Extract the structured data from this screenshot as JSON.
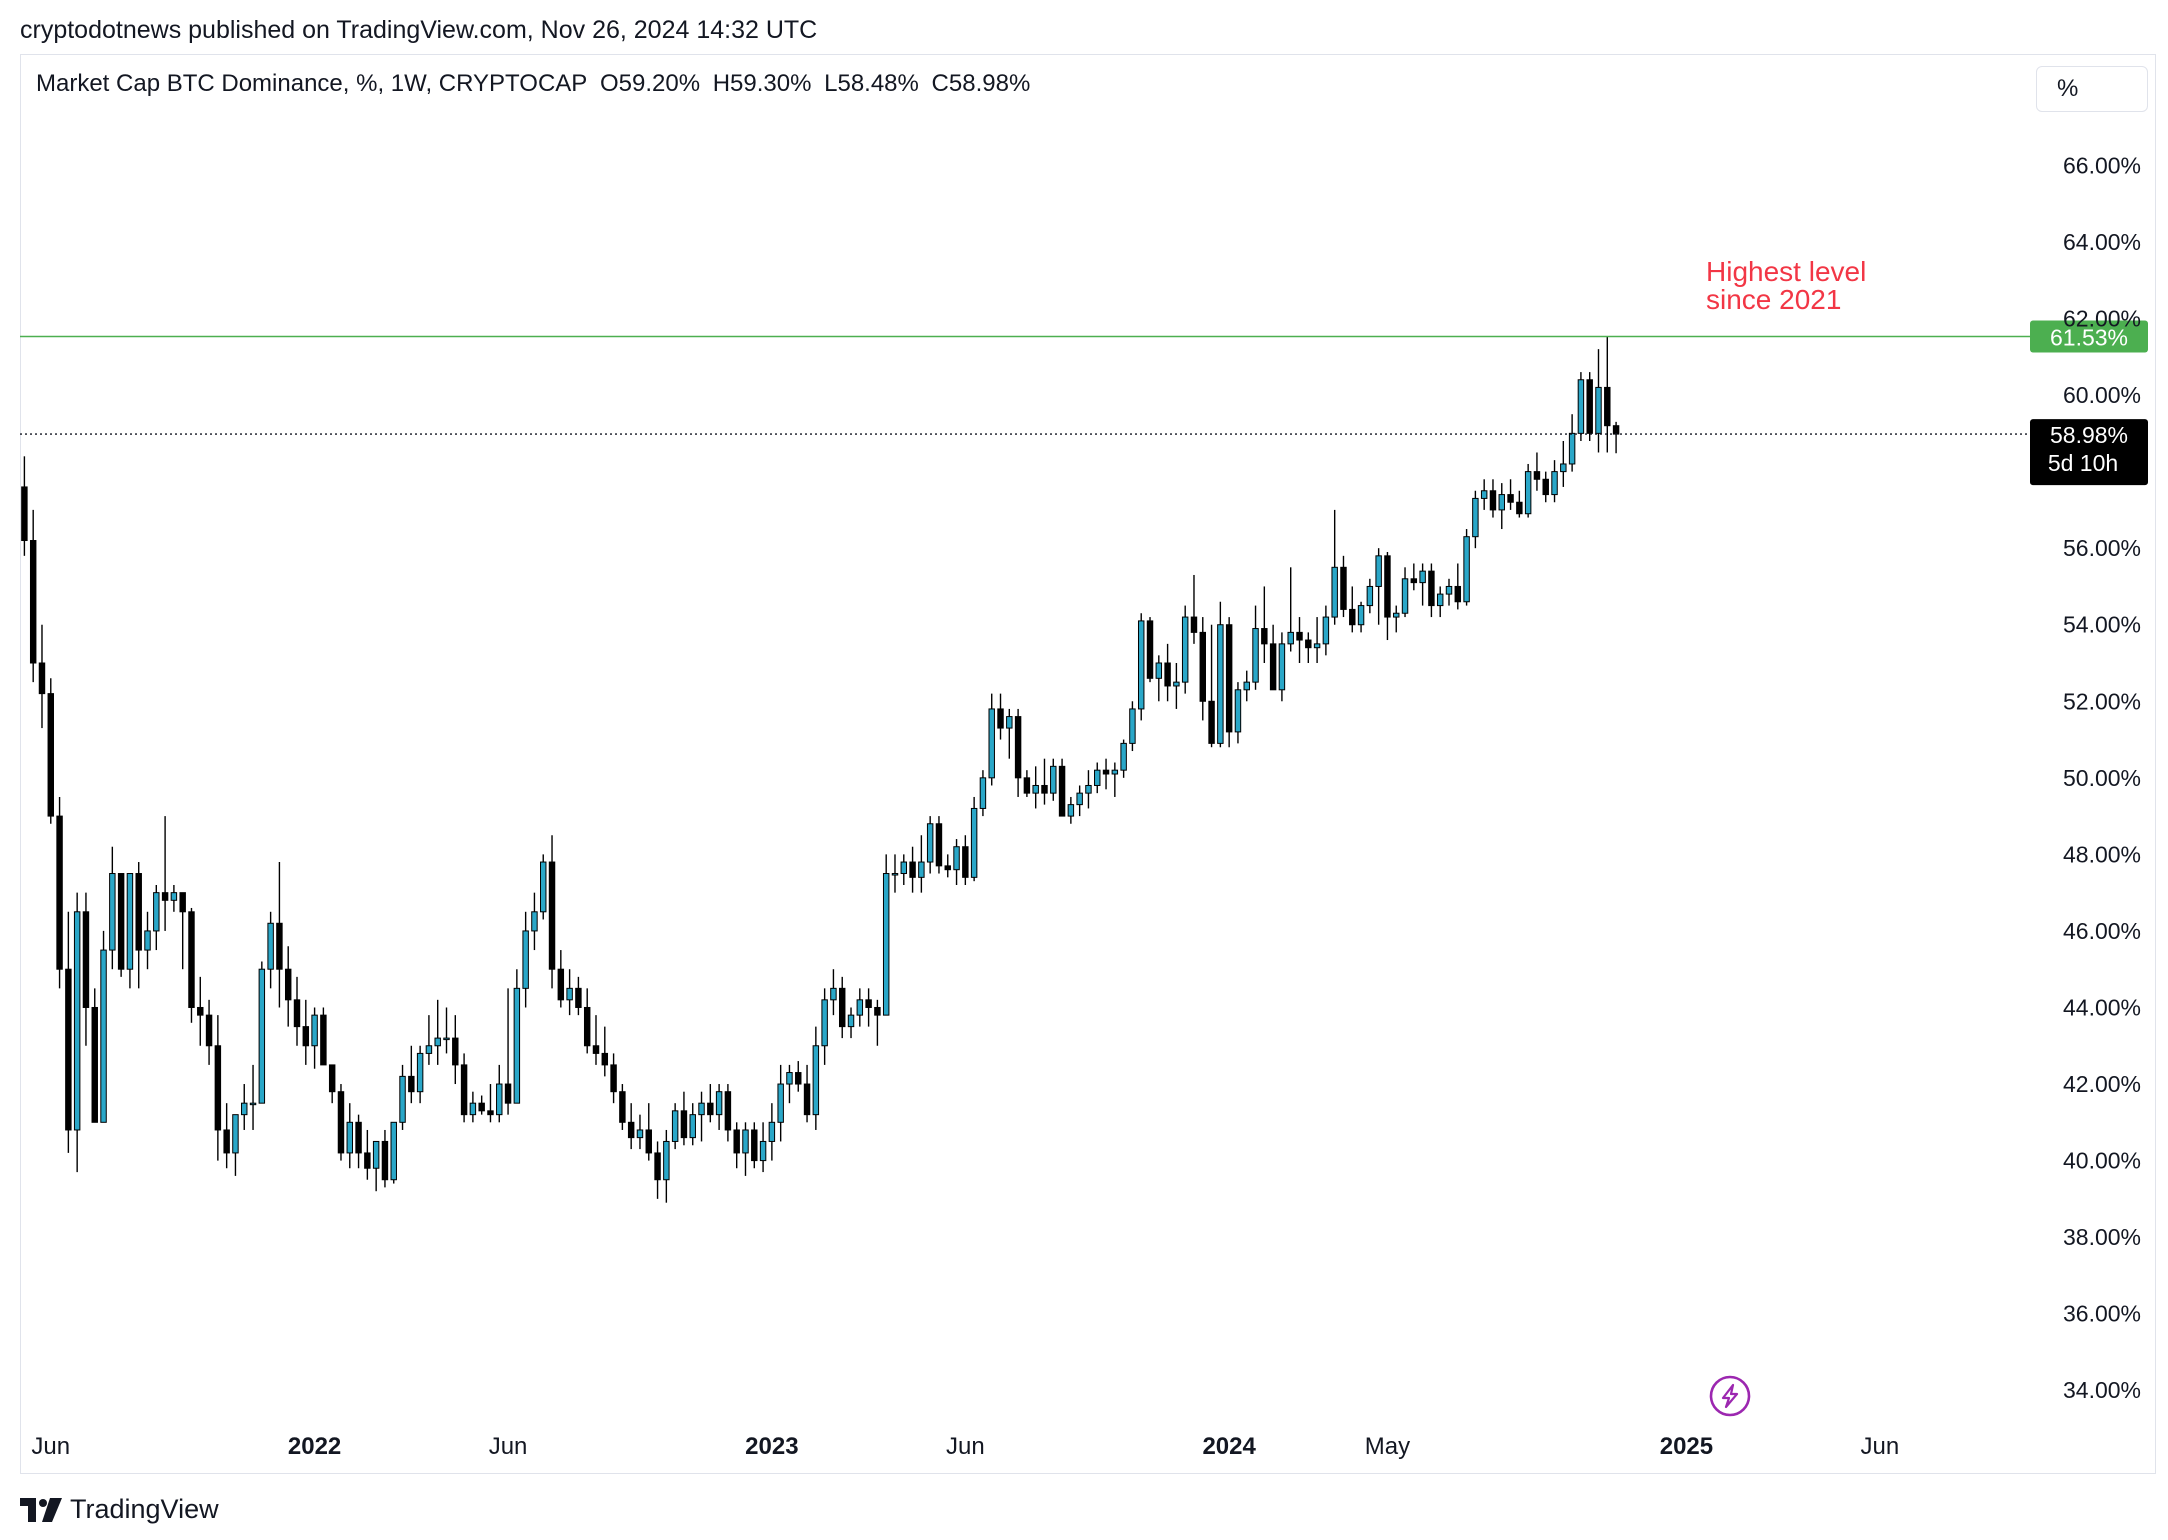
{
  "header": {
    "published": "cryptodotnews published on TradingView.com, Nov 26, 2024 14:32 UTC"
  },
  "legend": {
    "symbol": "Market Cap BTC Dominance, %, 1W, CRYPTOCAP",
    "open": "O59.20%",
    "high": "H59.30%",
    "low": "L58.48%",
    "close": "C58.98%"
  },
  "unit_button": "%",
  "annotation": {
    "line1": "Highest level",
    "line2": "since 2021"
  },
  "brand": "TradingView",
  "colors": {
    "up": "#26a69a",
    "up_body": "#2aa7c8",
    "down": "#000000",
    "highlight_line": "#4caf50",
    "annotation": "#f23645",
    "lightning": "#9c27b0"
  },
  "chart_data": {
    "type": "candlestick",
    "title": "Market Cap BTC Dominance, %, 1W, CRYPTOCAP",
    "ylabel": "",
    "xlabel": "",
    "ylim": [
      32.7,
      67.5
    ],
    "y_axis_side": "right",
    "yticks": [
      "66.00%",
      "64.00%",
      "62.00%",
      "60.00%",
      "56.00%",
      "54.00%",
      "52.00%",
      "50.00%",
      "48.00%",
      "46.00%",
      "44.00%",
      "42.00%",
      "40.00%",
      "38.00%",
      "36.00%",
      "34.00%"
    ],
    "ytick_values": [
      66,
      64,
      62,
      60,
      56,
      54,
      52,
      50,
      48,
      46,
      44,
      42,
      40,
      38,
      36,
      34
    ],
    "xticks": [
      "Jun",
      "2022",
      "Jun",
      "2023",
      "Jun",
      "2024",
      "May",
      "2025",
      "Jun"
    ],
    "xtick_weeks": [
      3.5,
      33.5,
      55.5,
      85.5,
      107.5,
      137.5,
      155.5,
      189.5,
      211.5
    ],
    "xtick_bold": [
      false,
      true,
      false,
      true,
      false,
      true,
      false,
      true,
      false
    ],
    "x_range_weeks": [
      0,
      228
    ],
    "highlight_level": {
      "value": 61.53,
      "label": "61.53%"
    },
    "current_price": {
      "value": 58.98,
      "label": "58.98%",
      "countdown": "5d 10h"
    },
    "grid": false,
    "candles_ohlc": [
      [
        57.6,
        58.4,
        55.8,
        56.2
      ],
      [
        56.2,
        57.0,
        52.5,
        53.0
      ],
      [
        53.0,
        54.0,
        51.3,
        52.2
      ],
      [
        52.2,
        52.6,
        48.8,
        49.0
      ],
      [
        49.0,
        49.5,
        44.5,
        45.0
      ],
      [
        45.0,
        46.5,
        40.2,
        40.8
      ],
      [
        40.8,
        47.0,
        39.7,
        46.5
      ],
      [
        46.5,
        47.0,
        43.0,
        44.0
      ],
      [
        44.0,
        44.5,
        41.0,
        41.0
      ],
      [
        41.0,
        46.0,
        41.0,
        45.5
      ],
      [
        45.5,
        48.2,
        45.0,
        47.5
      ],
      [
        47.5,
        47.5,
        44.8,
        45.0
      ],
      [
        45.0,
        47.5,
        44.5,
        47.5
      ],
      [
        47.5,
        47.8,
        44.5,
        45.5
      ],
      [
        45.5,
        46.5,
        45.0,
        46.0
      ],
      [
        46.0,
        47.2,
        45.5,
        47.0
      ],
      [
        47.0,
        49.0,
        46.0,
        46.8
      ],
      [
        46.8,
        47.2,
        46.5,
        47.0
      ],
      [
        47.0,
        47.0,
        45.0,
        46.5
      ],
      [
        46.5,
        46.6,
        43.6,
        44.0
      ],
      [
        44.0,
        44.8,
        43.0,
        43.8
      ],
      [
        43.8,
        44.2,
        42.5,
        43.0
      ],
      [
        43.0,
        43.8,
        40.0,
        40.8
      ],
      [
        40.8,
        41.5,
        39.8,
        40.2
      ],
      [
        40.2,
        41.0,
        39.6,
        41.2
      ],
      [
        41.2,
        42.0,
        40.8,
        41.5
      ],
      [
        41.5,
        42.5,
        40.8,
        41.5
      ],
      [
        41.5,
        45.2,
        41.5,
        45.0
      ],
      [
        45.0,
        46.5,
        44.5,
        46.2
      ],
      [
        46.2,
        47.8,
        44.0,
        45.0
      ],
      [
        45.0,
        45.6,
        43.5,
        44.2
      ],
      [
        44.2,
        44.8,
        43.0,
        43.5
      ],
      [
        43.5,
        44.2,
        42.5,
        43.0
      ],
      [
        43.0,
        44.0,
        42.4,
        43.8
      ],
      [
        43.8,
        44.0,
        42.5,
        42.5
      ],
      [
        42.5,
        42.5,
        41.5,
        41.8
      ],
      [
        41.8,
        42.0,
        40.0,
        40.2
      ],
      [
        40.2,
        41.5,
        39.8,
        41.0
      ],
      [
        41.0,
        41.2,
        39.8,
        40.2
      ],
      [
        40.2,
        40.8,
        39.5,
        39.8
      ],
      [
        39.8,
        40.5,
        39.2,
        40.5
      ],
      [
        40.5,
        40.8,
        39.3,
        39.5
      ],
      [
        39.5,
        41.0,
        39.4,
        41.0
      ],
      [
        41.0,
        42.5,
        40.8,
        42.2
      ],
      [
        42.2,
        43.0,
        41.5,
        41.8
      ],
      [
        41.8,
        43.0,
        41.5,
        42.8
      ],
      [
        42.8,
        43.8,
        42.5,
        43.0
      ],
      [
        43.0,
        44.2,
        42.5,
        43.2
      ],
      [
        43.2,
        44.0,
        42.8,
        43.2
      ],
      [
        43.2,
        43.8,
        42.0,
        42.5
      ],
      [
        42.5,
        42.8,
        41.0,
        41.2
      ],
      [
        41.2,
        41.8,
        41.0,
        41.5
      ],
      [
        41.5,
        41.7,
        41.2,
        41.3
      ],
      [
        41.3,
        42.0,
        41.0,
        41.2
      ],
      [
        41.2,
        42.5,
        41.0,
        42.0
      ],
      [
        42.0,
        44.5,
        41.2,
        41.5
      ],
      [
        41.5,
        45.0,
        41.5,
        44.5
      ],
      [
        44.5,
        46.5,
        44.0,
        46.0
      ],
      [
        46.0,
        47.0,
        45.5,
        46.5
      ],
      [
        46.5,
        48.0,
        46.3,
        47.8
      ],
      [
        47.8,
        48.5,
        44.5,
        45.0
      ],
      [
        45.0,
        45.5,
        44.0,
        44.2
      ],
      [
        44.2,
        45.0,
        43.8,
        44.5
      ],
      [
        44.5,
        44.8,
        43.8,
        44.0
      ],
      [
        44.0,
        44.5,
        42.8,
        43.0
      ],
      [
        43.0,
        43.8,
        42.5,
        42.8
      ],
      [
        42.8,
        43.5,
        42.2,
        42.5
      ],
      [
        42.5,
        42.8,
        41.5,
        41.8
      ],
      [
        41.8,
        42.0,
        40.8,
        41.0
      ],
      [
        41.0,
        41.5,
        40.3,
        40.6
      ],
      [
        40.6,
        41.2,
        40.3,
        40.8
      ],
      [
        40.8,
        41.5,
        40.0,
        40.2
      ],
      [
        40.2,
        40.5,
        39.0,
        39.5
      ],
      [
        39.5,
        40.8,
        38.9,
        40.5
      ],
      [
        40.5,
        41.5,
        40.3,
        41.3
      ],
      [
        41.3,
        41.8,
        40.4,
        40.6
      ],
      [
        40.6,
        41.5,
        40.4,
        41.2
      ],
      [
        41.2,
        41.8,
        40.5,
        41.5
      ],
      [
        41.5,
        42.0,
        41.0,
        41.2
      ],
      [
        41.2,
        42.0,
        40.8,
        41.8
      ],
      [
        41.8,
        42.0,
        40.5,
        40.8
      ],
      [
        40.8,
        41.0,
        39.8,
        40.2
      ],
      [
        40.2,
        41.0,
        39.6,
        40.8
      ],
      [
        40.8,
        41.0,
        39.8,
        40.0
      ],
      [
        40.0,
        41.0,
        39.7,
        40.5
      ],
      [
        40.5,
        41.5,
        40.0,
        41.0
      ],
      [
        41.0,
        42.5,
        40.5,
        42.0
      ],
      [
        42.0,
        42.5,
        41.5,
        42.3
      ],
      [
        42.3,
        42.6,
        41.8,
        42.0
      ],
      [
        42.0,
        42.5,
        41.0,
        41.2
      ],
      [
        41.2,
        43.5,
        40.8,
        43.0
      ],
      [
        43.0,
        44.5,
        42.5,
        44.2
      ],
      [
        44.2,
        45.0,
        43.8,
        44.5
      ],
      [
        44.5,
        44.8,
        43.2,
        43.5
      ],
      [
        43.5,
        44.0,
        43.2,
        43.8
      ],
      [
        43.8,
        44.5,
        43.5,
        44.2
      ],
      [
        44.2,
        44.5,
        43.5,
        44.0
      ],
      [
        44.0,
        44.2,
        43.0,
        43.8
      ],
      [
        43.8,
        48.0,
        43.8,
        47.5
      ],
      [
        47.5,
        48.0,
        47.0,
        47.5
      ],
      [
        47.5,
        48.0,
        47.2,
        47.8
      ],
      [
        47.8,
        48.2,
        47.0,
        47.4
      ],
      [
        47.4,
        48.5,
        47.0,
        47.8
      ],
      [
        47.8,
        49.0,
        47.5,
        48.8
      ],
      [
        48.8,
        49.0,
        47.5,
        47.7
      ],
      [
        47.7,
        48.0,
        47.4,
        47.6
      ],
      [
        47.6,
        48.4,
        47.2,
        48.2
      ],
      [
        48.2,
        48.5,
        47.2,
        47.4
      ],
      [
        47.4,
        49.5,
        47.3,
        49.2
      ],
      [
        49.2,
        50.2,
        49.0,
        50.0
      ],
      [
        50.0,
        52.2,
        49.8,
        51.8
      ],
      [
        51.8,
        52.2,
        51.0,
        51.3
      ],
      [
        51.3,
        51.8,
        50.5,
        51.6
      ],
      [
        51.6,
        51.8,
        49.5,
        50.0
      ],
      [
        50.0,
        50.2,
        49.5,
        49.6
      ],
      [
        49.6,
        50.3,
        49.2,
        49.8
      ],
      [
        49.8,
        50.5,
        49.3,
        49.6
      ],
      [
        49.6,
        50.5,
        49.4,
        50.3
      ],
      [
        50.3,
        50.5,
        49.0,
        49.0
      ],
      [
        49.0,
        49.5,
        48.8,
        49.3
      ],
      [
        49.3,
        49.8,
        49.0,
        49.6
      ],
      [
        49.6,
        50.2,
        49.2,
        49.8
      ],
      [
        49.8,
        50.4,
        49.6,
        50.2
      ],
      [
        50.2,
        50.5,
        49.7,
        50.1
      ],
      [
        50.1,
        50.4,
        49.5,
        50.2
      ],
      [
        50.2,
        51.0,
        50.0,
        50.9
      ],
      [
        50.9,
        52.0,
        50.7,
        51.8
      ],
      [
        51.8,
        54.3,
        51.5,
        54.1
      ],
      [
        54.1,
        54.2,
        52.5,
        52.6
      ],
      [
        52.6,
        53.2,
        52.0,
        53.0
      ],
      [
        53.0,
        53.5,
        52.0,
        52.4
      ],
      [
        52.4,
        53.0,
        51.8,
        52.5
      ],
      [
        52.5,
        54.5,
        52.2,
        54.2
      ],
      [
        54.2,
        55.3,
        53.5,
        53.8
      ],
      [
        53.8,
        54.2,
        51.5,
        52.0
      ],
      [
        52.0,
        54.0,
        50.8,
        50.9
      ],
      [
        50.9,
        54.6,
        50.8,
        54.0
      ],
      [
        54.0,
        54.2,
        50.8,
        51.2
      ],
      [
        51.2,
        52.5,
        50.9,
        52.3
      ],
      [
        52.3,
        52.8,
        52.0,
        52.5
      ],
      [
        52.5,
        54.5,
        52.3,
        53.9
      ],
      [
        53.9,
        55.0,
        53.0,
        53.5
      ],
      [
        53.5,
        54.0,
        52.3,
        52.3
      ],
      [
        52.3,
        53.8,
        52.0,
        53.5
      ],
      [
        53.5,
        55.5,
        53.3,
        53.8
      ],
      [
        53.8,
        54.2,
        53.0,
        53.6
      ],
      [
        53.6,
        53.8,
        53.0,
        53.4
      ],
      [
        53.4,
        54.2,
        53.0,
        53.5
      ],
      [
        53.5,
        54.5,
        53.2,
        54.2
      ],
      [
        54.2,
        57.0,
        54.0,
        55.5
      ],
      [
        55.5,
        55.8,
        54.2,
        54.4
      ],
      [
        54.4,
        55.0,
        53.8,
        54.0
      ],
      [
        54.0,
        54.6,
        53.8,
        54.5
      ],
      [
        54.5,
        55.2,
        54.3,
        55.0
      ],
      [
        55.0,
        56.0,
        54.0,
        55.8
      ],
      [
        55.8,
        55.9,
        53.6,
        54.2
      ],
      [
        54.2,
        54.5,
        53.8,
        54.3
      ],
      [
        54.3,
        55.5,
        54.2,
        55.2
      ],
      [
        55.2,
        55.6,
        54.9,
        55.1
      ],
      [
        55.1,
        55.6,
        54.5,
        55.4
      ],
      [
        55.4,
        55.6,
        54.2,
        54.5
      ],
      [
        54.5,
        55.0,
        54.2,
        54.8
      ],
      [
        54.8,
        55.2,
        54.5,
        55.0
      ],
      [
        55.0,
        55.6,
        54.4,
        54.6
      ],
      [
        54.6,
        56.5,
        54.5,
        56.3
      ],
      [
        56.3,
        57.5,
        56.0,
        57.3
      ],
      [
        57.3,
        57.8,
        57.0,
        57.5
      ],
      [
        57.5,
        57.8,
        56.8,
        57.0
      ],
      [
        57.0,
        57.7,
        56.5,
        57.4
      ],
      [
        57.4,
        57.8,
        57.0,
        57.2
      ],
      [
        57.2,
        57.5,
        56.8,
        56.9
      ],
      [
        56.9,
        58.2,
        56.8,
        58.0
      ],
      [
        58.0,
        58.5,
        57.5,
        57.8
      ],
      [
        57.8,
        58.0,
        57.2,
        57.4
      ],
      [
        57.4,
        58.3,
        57.2,
        58.0
      ],
      [
        58.0,
        58.8,
        57.6,
        58.2
      ],
      [
        58.2,
        59.5,
        58.0,
        59.0
      ],
      [
        59.0,
        60.6,
        58.8,
        60.4
      ],
      [
        60.4,
        60.6,
        58.8,
        59.0
      ],
      [
        59.0,
        61.2,
        58.5,
        60.2
      ],
      [
        60.2,
        61.53,
        58.5,
        59.2
      ],
      [
        59.2,
        59.3,
        58.48,
        58.98
      ]
    ]
  }
}
